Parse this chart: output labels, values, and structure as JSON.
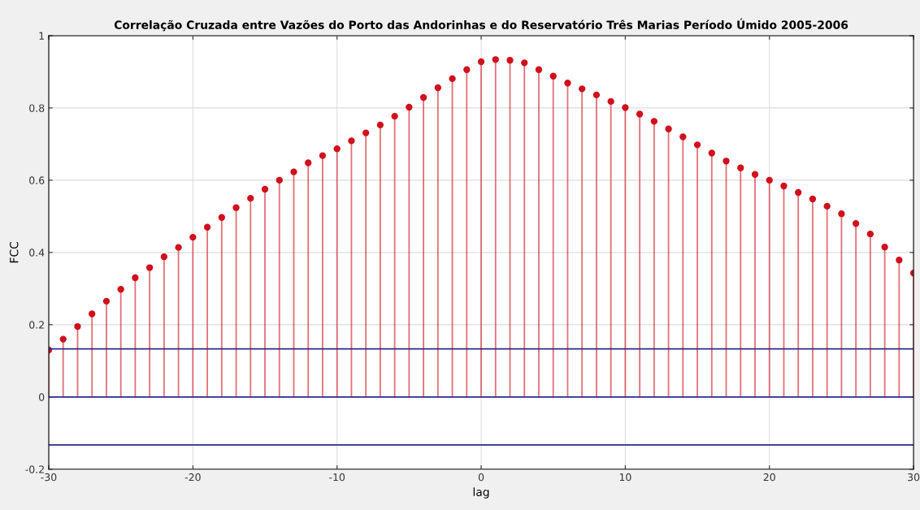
{
  "chart_data": {
    "type": "lollipop",
    "title": "Correlação Cruzada entre Vazões do Porto das Andorinhas e do Reservatório Três Marias Período Úmido 2005-2006",
    "xlabel": "lag",
    "ylabel": "FCC",
    "x": [
      -30,
      -29,
      -28,
      -27,
      -26,
      -25,
      -24,
      -23,
      -22,
      -21,
      -20,
      -19,
      -18,
      -17,
      -16,
      -15,
      -14,
      -13,
      -12,
      -11,
      -10,
      -9,
      -8,
      -7,
      -6,
      -5,
      -4,
      -3,
      -2,
      -1,
      0,
      1,
      2,
      3,
      4,
      5,
      6,
      7,
      8,
      9,
      10,
      11,
      12,
      13,
      14,
      15,
      16,
      17,
      18,
      19,
      20,
      21,
      22,
      23,
      24,
      25,
      26,
      27,
      28,
      29,
      30
    ],
    "series": [
      {
        "color": "#d0101c",
        "values": [
          0.13,
          0.16,
          0.195,
          0.23,
          0.265,
          0.298,
          0.33,
          0.358,
          0.388,
          0.414,
          0.442,
          0.47,
          0.497,
          0.524,
          0.55,
          0.575,
          0.6,
          0.623,
          0.648,
          0.668,
          0.687,
          0.709,
          0.731,
          0.753,
          0.777,
          0.802,
          0.829,
          0.856,
          0.881,
          0.906,
          0.928,
          0.934,
          0.932,
          0.925,
          0.906,
          0.888,
          0.869,
          0.853,
          0.836,
          0.818,
          0.801,
          0.783,
          0.763,
          0.742,
          0.72,
          0.698,
          0.675,
          0.653,
          0.634,
          0.616,
          0.6,
          0.584,
          0.566,
          0.548,
          0.528,
          0.507,
          0.48,
          0.451,
          0.415,
          0.379,
          0.343
        ]
      }
    ],
    "ref_lines": [
      {
        "axis": "y",
        "value": 0.133,
        "color": "#2a2a8a"
      },
      {
        "axis": "y",
        "value": 0,
        "color": "#2a2a8a"
      },
      {
        "axis": "y",
        "value": -0.133,
        "color": "#2a2a8a"
      }
    ],
    "xlim": [
      -30,
      30
    ],
    "ylim": [
      -0.2,
      1
    ],
    "xticks": [
      -30,
      -20,
      -10,
      0,
      10,
      20,
      30
    ],
    "yticks": [
      -0.2,
      0,
      0.2,
      0.4,
      0.6,
      0.8,
      1
    ],
    "grid": true,
    "marker": "circle"
  }
}
